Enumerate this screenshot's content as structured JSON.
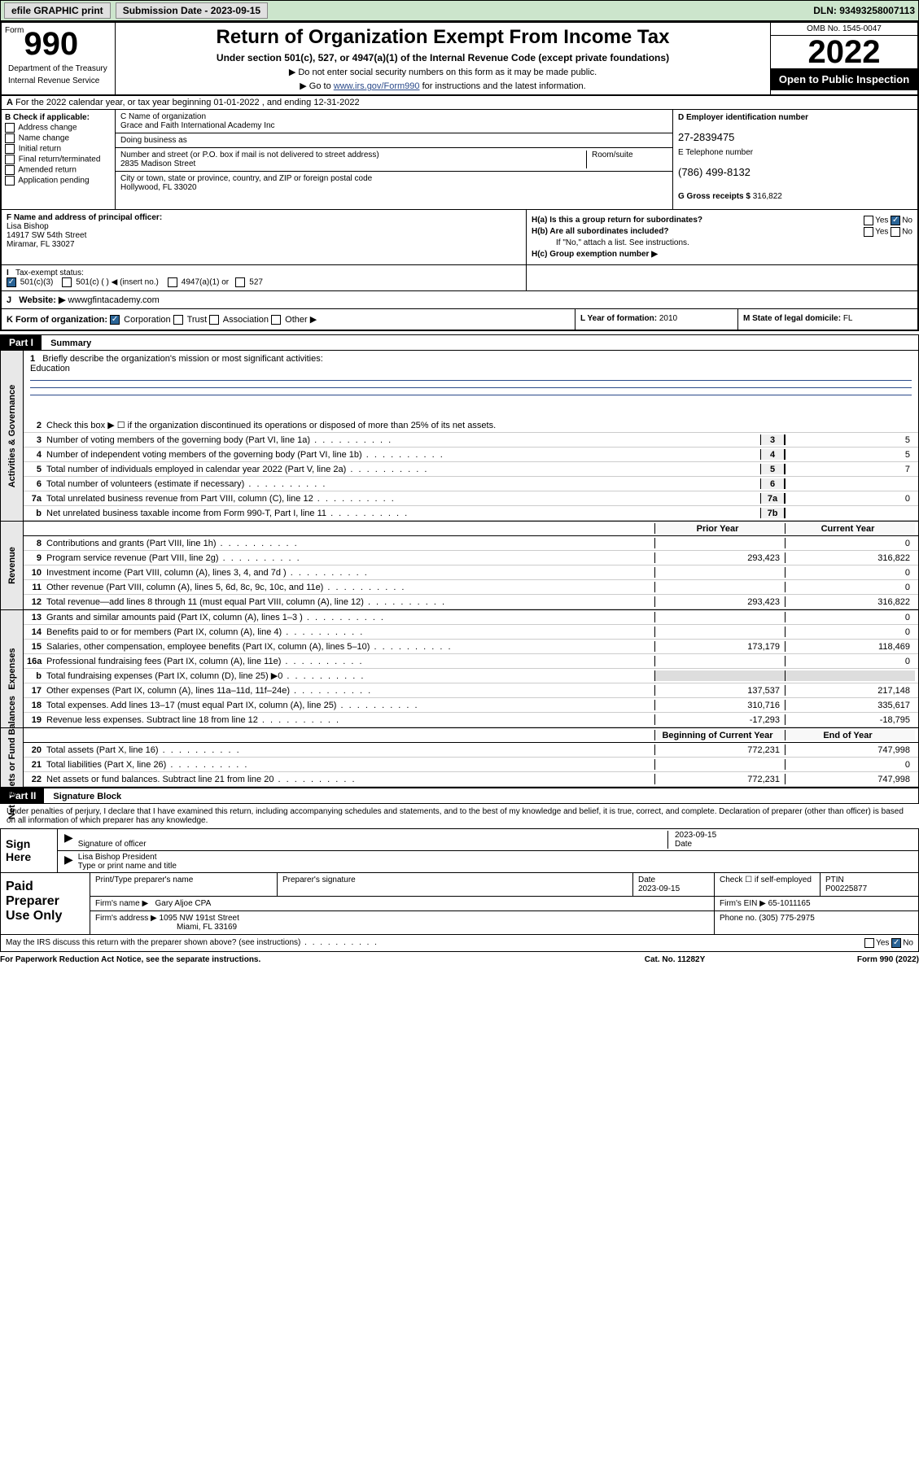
{
  "topbar": {
    "efile": "efile GRAPHIC print",
    "submission_label": "Submission Date - ",
    "submission_date": "2023-09-15",
    "dln": "DLN: 93493258007113"
  },
  "header": {
    "form_word": "Form",
    "form_number": "990",
    "title": "Return of Organization Exempt From Income Tax",
    "subtitle": "Under section 501(c), 527, or 4947(a)(1) of the Internal Revenue Code (except private foundations)",
    "note1": "▶ Do not enter social security numbers on this form as it may be made public.",
    "note2_pre": "▶ Go to ",
    "note2_link": "www.irs.gov/Form990",
    "note2_post": " for instructions and the latest information.",
    "omb": "OMB No. 1545-0047",
    "year": "2022",
    "open_public": "Open to Public Inspection",
    "dept": "Department of the Treasury",
    "irs": "Internal Revenue Service"
  },
  "period": "For the 2022 calendar year, or tax year beginning 01-01-2022    , and ending 12-31-2022",
  "section_b": {
    "header": "B Check if applicable:",
    "opts": [
      "Address change",
      "Name change",
      "Initial return",
      "Final return/terminated",
      "Amended return",
      "Application pending"
    ]
  },
  "section_c": {
    "name_label": "C Name of organization",
    "org_name": "Grace and Faith International Academy Inc",
    "dba_label": "Doing business as",
    "dba": "",
    "addr_label": "Number and street (or P.O. box if mail is not delivered to street address)",
    "room_label": "Room/suite",
    "street": "2835 Madison Street",
    "city_label": "City or town, state or province, country, and ZIP or foreign postal code",
    "city": "Hollywood, FL  33020"
  },
  "section_d": {
    "ein_label": "D Employer identification number",
    "ein": "27-2839475",
    "phone_label": "E Telephone number",
    "phone": "(786) 499-8132",
    "gross_label": "G Gross receipts $",
    "gross": "316,822"
  },
  "section_f": {
    "label": "F  Name and address of principal officer:",
    "name": "Lisa Bishop",
    "addr1": "14917 SW 54th Street",
    "addr2": "Miramar, FL  33027"
  },
  "section_h": {
    "ha": "H(a)  Is this a group return for subordinates?",
    "hb": "H(b)  Are all subordinates included?",
    "hb_note": "If \"No,\" attach a list. See instructions.",
    "hc": "H(c)  Group exemption number ▶",
    "yes": "Yes",
    "no": "No"
  },
  "section_i": {
    "label": "Tax-exempt status:",
    "opt1": "501(c)(3)",
    "opt2": "501(c) (   ) ◀ (insert no.)",
    "opt3": "4947(a)(1) or",
    "opt4": "527"
  },
  "section_j": {
    "label": "Website: ▶",
    "value": "wwwgfintacademy.com"
  },
  "section_k": {
    "label": "K Form of organization:",
    "corp": "Corporation",
    "trust": "Trust",
    "assoc": "Association",
    "other": "Other ▶",
    "l_label": "L Year of formation:",
    "l_val": "2010",
    "m_label": "M State of legal domicile:",
    "m_val": "FL"
  },
  "part1": {
    "label": "Part I",
    "title": "Summary",
    "side_labels": [
      "Activities & Governance",
      "Revenue",
      "Expenses",
      "Net Assets or Fund Balances"
    ],
    "line1": "Briefly describe the organization's mission or most significant activities:",
    "mission": "Education",
    "line2": "Check this box ▶ ☐  if the organization discontinued its operations or disposed of more than 25% of its net assets.",
    "lines_gov": [
      {
        "n": "3",
        "t": "Number of voting members of the governing body (Part VI, line 1a)",
        "box": "3",
        "v": "5"
      },
      {
        "n": "4",
        "t": "Number of independent voting members of the governing body (Part VI, line 1b)",
        "box": "4",
        "v": "5"
      },
      {
        "n": "5",
        "t": "Total number of individuals employed in calendar year 2022 (Part V, line 2a)",
        "box": "5",
        "v": "7"
      },
      {
        "n": "6",
        "t": "Total number of volunteers (estimate if necessary)",
        "box": "6",
        "v": ""
      },
      {
        "n": "7a",
        "t": "Total unrelated business revenue from Part VIII, column (C), line 12",
        "box": "7a",
        "v": "0"
      },
      {
        "n": "b",
        "t": "Net unrelated business taxable income from Form 990-T, Part I, line 11",
        "box": "7b",
        "v": ""
      }
    ],
    "col_prior": "Prior Year",
    "col_current": "Current Year",
    "lines_rev": [
      {
        "n": "8",
        "t": "Contributions and grants (Part VIII, line 1h)",
        "p": "",
        "c": "0"
      },
      {
        "n": "9",
        "t": "Program service revenue (Part VIII, line 2g)",
        "p": "293,423",
        "c": "316,822"
      },
      {
        "n": "10",
        "t": "Investment income (Part VIII, column (A), lines 3, 4, and 7d )",
        "p": "",
        "c": "0"
      },
      {
        "n": "11",
        "t": "Other revenue (Part VIII, column (A), lines 5, 6d, 8c, 9c, 10c, and 11e)",
        "p": "",
        "c": "0"
      },
      {
        "n": "12",
        "t": "Total revenue—add lines 8 through 11 (must equal Part VIII, column (A), line 12)",
        "p": "293,423",
        "c": "316,822"
      }
    ],
    "lines_exp": [
      {
        "n": "13",
        "t": "Grants and similar amounts paid (Part IX, column (A), lines 1–3 )",
        "p": "",
        "c": "0"
      },
      {
        "n": "14",
        "t": "Benefits paid to or for members (Part IX, column (A), line 4)",
        "p": "",
        "c": "0"
      },
      {
        "n": "15",
        "t": "Salaries, other compensation, employee benefits (Part IX, column (A), lines 5–10)",
        "p": "173,179",
        "c": "118,469"
      },
      {
        "n": "16a",
        "t": "Professional fundraising fees (Part IX, column (A), line 11e)",
        "p": "",
        "c": "0"
      },
      {
        "n": "b",
        "t": "Total fundraising expenses (Part IX, column (D), line 25) ▶0",
        "p": "—",
        "c": "—"
      },
      {
        "n": "17",
        "t": "Other expenses (Part IX, column (A), lines 11a–11d, 11f–24e)",
        "p": "137,537",
        "c": "217,148"
      },
      {
        "n": "18",
        "t": "Total expenses. Add lines 13–17 (must equal Part IX, column (A), line 25)",
        "p": "310,716",
        "c": "335,617"
      },
      {
        "n": "19",
        "t": "Revenue less expenses. Subtract line 18 from line 12",
        "p": "-17,293",
        "c": "-18,795"
      }
    ],
    "col_begin": "Beginning of Current Year",
    "col_end": "End of Year",
    "lines_net": [
      {
        "n": "20",
        "t": "Total assets (Part X, line 16)",
        "p": "772,231",
        "c": "747,998"
      },
      {
        "n": "21",
        "t": "Total liabilities (Part X, line 26)",
        "p": "",
        "c": "0"
      },
      {
        "n": "22",
        "t": "Net assets or fund balances. Subtract line 21 from line 20",
        "p": "772,231",
        "c": "747,998"
      }
    ]
  },
  "part2": {
    "label": "Part II",
    "title": "Signature Block",
    "declaration": "Under penalties of perjury, I declare that I have examined this return, including accompanying schedules and statements, and to the best of my knowledge and belief, it is true, correct, and complete. Declaration of preparer (other than officer) is based on all information of which preparer has any knowledge.",
    "sign_here": "Sign Here",
    "sig_officer": "Signature of officer",
    "sig_date": "2023-09-15",
    "date_label": "Date",
    "officer_name": "Lisa Bishop  President",
    "officer_type": "Type or print name and title",
    "paid_prep": "Paid Preparer Use Only",
    "print_name_lbl": "Print/Type preparer's name",
    "prep_sig_lbl": "Preparer's signature",
    "prep_date": "2023-09-15",
    "check_if": "Check ☐ if self-employed",
    "ptin_lbl": "PTIN",
    "ptin": "P00225877",
    "firm_name_lbl": "Firm's name    ▶",
    "firm_name": "Gary Aljoe CPA",
    "firm_ein_lbl": "Firm's EIN ▶",
    "firm_ein": "65-1011165",
    "firm_addr_lbl": "Firm's address ▶",
    "firm_addr1": "1095 NW 191st Street",
    "firm_addr2": "Miami, FL  33169",
    "phone_lbl": "Phone no.",
    "phone": "(305) 775-2975",
    "discuss": "May the IRS discuss this return with the preparer shown above? (see instructions)"
  },
  "footer": {
    "paperwork": "For Paperwork Reduction Act Notice, see the separate instructions.",
    "catno": "Cat. No. 11282Y",
    "formyr": "Form 990 (2022)"
  }
}
